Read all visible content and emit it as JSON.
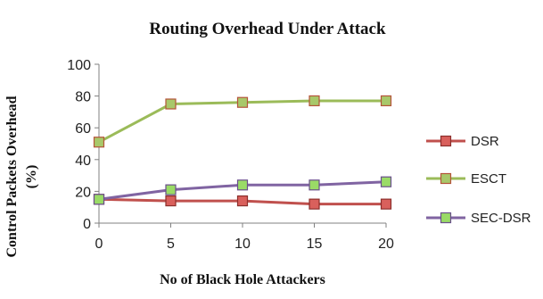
{
  "chart_data": {
    "type": "line",
    "title": "Routing Overhead Under  Attack",
    "xlabel": "No of Black Hole Attackers",
    "ylabel_line1": "Control Packets Overhead",
    "ylabel_line2": "(%)",
    "x": [
      0,
      5,
      10,
      15,
      20
    ],
    "x_tick_labels": [
      "0",
      "5",
      "10",
      "15",
      "20"
    ],
    "ylim": [
      0,
      100
    ],
    "y_ticks": [
      0,
      20,
      40,
      60,
      80,
      100
    ],
    "y_tick_labels": [
      "0",
      "20",
      "40",
      "60",
      "80",
      "100"
    ],
    "grid": false,
    "legend_position": "right",
    "series": [
      {
        "name": "DSR",
        "values": [
          15,
          14,
          14,
          12,
          12
        ],
        "color": "#c0504d",
        "marker_fill": "#d9605c",
        "marker_stroke": "#8c2f2c"
      },
      {
        "name": "ESCT",
        "values": [
          51,
          75,
          76,
          77,
          77
        ],
        "color": "#9bbb59",
        "marker_fill": "#a8c86a",
        "marker_stroke": "#b5543a"
      },
      {
        "name": "SEC-DSR",
        "values": [
          15,
          21,
          24,
          24,
          26
        ],
        "color": "#8064a2",
        "marker_fill": "#9adb66",
        "marker_stroke": "#6a4f8c"
      }
    ]
  }
}
